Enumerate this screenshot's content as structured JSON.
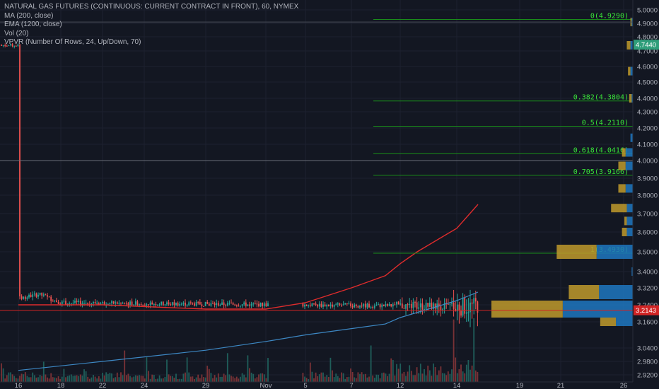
{
  "legend": {
    "title": "NATURAL GAS FUTURES (CONTINUOUS: CURRENT CONTRACT IN FRONT), 60, NYMEX",
    "ind1": "MA (200, close)",
    "ind2": "EMA (1200, close)",
    "ind3": "Vol (20)",
    "ind4": "VPVR (Number Of Rows, 24, Up/Down, 70)"
  },
  "colors": {
    "background": "#131722",
    "grid": "#1e2230",
    "up": "#26a69a",
    "down": "#ef5350",
    "ma200": "#e02c2c",
    "ema1200": "#3d88c4",
    "fib": "#1a8d1a",
    "fib_text": "#39e339",
    "last_price": "#2f9e7a",
    "cursor_price": "#d02424",
    "vp_up": "#1e77c0",
    "vp_down": "#c09a2c"
  },
  "chart_data": {
    "type": "candlestick",
    "symbol": "NATURAL GAS FUTURES (CONTINUOUS: CURRENT CONTRACT IN FRONT)",
    "interval": "60",
    "exchange": "NYMEX",
    "y_range": [
      2.9,
      5.02
    ],
    "y_ticks": [
      "5.0000",
      "4.9000",
      "4.8000",
      "4.7000",
      "4.6000",
      "4.5000",
      "4.4000",
      "4.3000",
      "4.2000",
      "4.1000",
      "4.0000",
      "3.9000",
      "3.8000",
      "3.7000",
      "3.6000",
      "3.5000",
      "3.4000",
      "3.3200",
      "3.2400",
      "3.1600",
      "3.0400",
      "2.9800",
      "2.9200"
    ],
    "x_ticks": [
      "16",
      "18",
      "22",
      "24",
      "29",
      "Nov",
      "5",
      "7",
      "12",
      "14",
      "19",
      "21",
      "26"
    ],
    "last_price": "4.7440",
    "cursor_price": "3.2143",
    "crosshair_price": 4.0,
    "fibonacci": [
      {
        "label": "0(4.9290)",
        "price": 4.929
      },
      {
        "label": "0.382(4.3804)",
        "price": 4.3804
      },
      {
        "label": "0.5(4.2110)",
        "price": 4.211
      },
      {
        "label": "0.618(4.0416)",
        "price": 4.0416
      },
      {
        "label": "0.705(3.9166)",
        "price": 3.9166
      },
      {
        "label": "1(3.4930)",
        "price": 3.493
      }
    ],
    "price_path": [
      [
        "16",
        3.27
      ],
      [
        "17",
        3.29
      ],
      [
        "18",
        3.25
      ],
      [
        "19",
        3.23
      ],
      [
        "22",
        3.22
      ],
      [
        "23",
        3.19
      ],
      [
        "24",
        3.23
      ],
      [
        "25",
        3.2
      ],
      [
        "26",
        3.18
      ],
      [
        "29",
        3.17
      ],
      [
        "30",
        3.21
      ],
      [
        "31",
        3.26
      ],
      [
        "Nov 1",
        3.3
      ],
      [
        "Nov 2",
        3.22
      ],
      [
        "5",
        3.5
      ],
      [
        "6",
        3.56
      ],
      [
        "7",
        3.55
      ],
      [
        "8",
        3.53
      ],
      [
        "9",
        3.58
      ],
      [
        "12",
        3.82
      ],
      [
        "13",
        3.95
      ],
      [
        "14a",
        4.08
      ],
      [
        "14b",
        4.93
      ],
      [
        "15",
        4.74
      ]
    ],
    "ma200": [
      [
        "16",
        3.24
      ],
      [
        "22",
        3.24
      ],
      [
        "29",
        3.22
      ],
      [
        "Nov 1",
        3.22
      ],
      [
        "5",
        3.25
      ],
      [
        "7",
        3.32
      ],
      [
        "9",
        3.38
      ],
      [
        "12",
        3.44
      ],
      [
        "13",
        3.5
      ],
      [
        "14",
        3.62
      ],
      [
        "15",
        3.75
      ]
    ],
    "ema1200": [
      [
        "16",
        2.94
      ],
      [
        "22",
        2.98
      ],
      [
        "29",
        3.03
      ],
      [
        "Nov 1",
        3.07
      ],
      [
        "5",
        3.1
      ],
      [
        "9",
        3.15
      ],
      [
        "12",
        3.18
      ],
      [
        "14",
        3.26
      ],
      [
        "15",
        3.3
      ]
    ],
    "volume_profile": [
      {
        "price": 4.91,
        "up": 0.01,
        "down": 0.01
      },
      {
        "price": 4.74,
        "up": 0.02,
        "down": 0.03
      },
      {
        "price": 4.57,
        "up": 0.02,
        "down": 0.02
      },
      {
        "price": 4.4,
        "up": 0.01,
        "down": 0.02
      },
      {
        "price": 4.14,
        "up": 0.02,
        "down": 0.0
      },
      {
        "price": 4.05,
        "up": 0.06,
        "down": 0.03
      },
      {
        "price": 3.97,
        "up": 0.06,
        "down": 0.06
      },
      {
        "price": 3.84,
        "up": 0.06,
        "down": 0.06
      },
      {
        "price": 3.73,
        "up": 0.05,
        "down": 0.13
      },
      {
        "price": 3.66,
        "up": 0.05,
        "down": 0.02
      },
      {
        "price": 3.6,
        "up": 0.05,
        "down": 0.04
      },
      {
        "price": 3.5,
        "up": 0.3,
        "down": 0.33
      },
      {
        "price": 3.4,
        "up": 0.01,
        "down": 0.0
      },
      {
        "price": 3.3,
        "up": 0.28,
        "down": 0.25
      },
      {
        "price": 3.22,
        "up": 0.58,
        "down": 0.59
      },
      {
        "price": 3.16,
        "up": 0.14,
        "down": 0.13
      }
    ]
  }
}
